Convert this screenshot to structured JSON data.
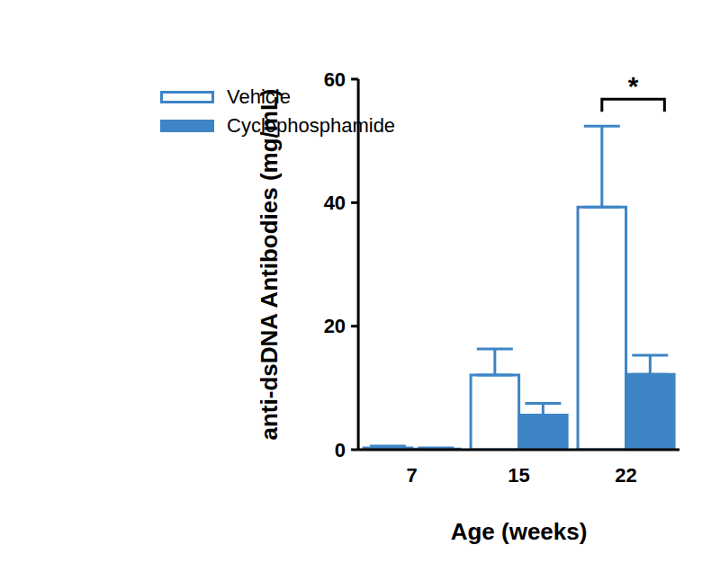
{
  "chart_data": {
    "type": "bar",
    "categories": [
      "7",
      "15",
      "22"
    ],
    "x_label": "Age (weeks)",
    "y_label": "anti-dsDNA Antibodies (mg/mL)",
    "ylim": [
      0,
      60
    ],
    "yticks": [
      0,
      20,
      40,
      60
    ],
    "legend": "upper left",
    "series": [
      {
        "name": "Vehicle",
        "color": "#3d85c6",
        "values": [
          0.3,
          12.1,
          39.3
        ],
        "errors": [
          0.3,
          4.2,
          13.1
        ]
      },
      {
        "name": "Cyclophosphamide",
        "color": "#3d85c6",
        "values": [
          0.1,
          5.6,
          12.2
        ],
        "errors": [
          0.2,
          1.9,
          3.1
        ]
      }
    ],
    "annotations": [
      {
        "text": "*",
        "category": "22"
      }
    ]
  }
}
